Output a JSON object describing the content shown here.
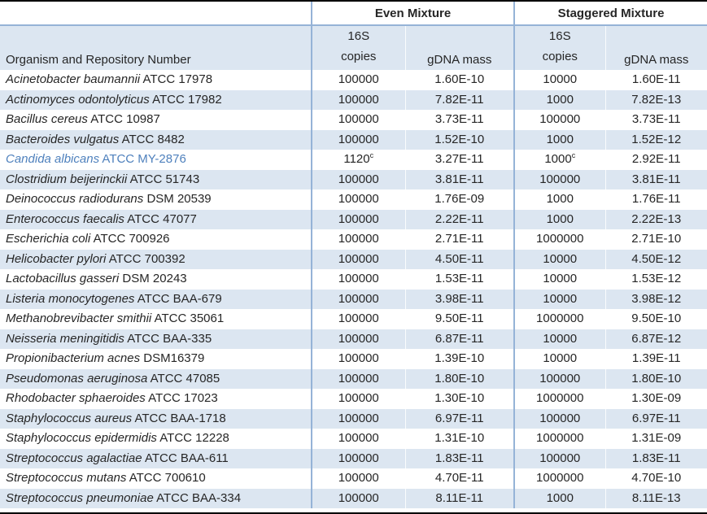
{
  "header": {
    "group_even": "Even Mixture",
    "group_staggered": "Staggered Mixture",
    "organism": "Organism and Repository Number",
    "copies_top": "16S",
    "copies_bottom": "copies",
    "gdna": "gDNA mass"
  },
  "colors": {
    "stripe": "#dce6f1",
    "border_blue": "#95b3d7",
    "border_dark": "#000000",
    "text": "#262626",
    "highlight_text": "#4f81bd"
  },
  "rows": [
    {
      "name": "Acinetobacter baumannii",
      "repo": "ATCC 17978",
      "even_copies": "100000",
      "even_gdna": "1.60E-10",
      "stag_copies": "10000",
      "stag_gdna": "1.60E-11",
      "highlight": false
    },
    {
      "name": "Actinomyces odontolyticus",
      "repo": "ATCC 17982",
      "even_copies": "100000",
      "even_gdna": "7.82E-11",
      "stag_copies": "1000",
      "stag_gdna": "7.82E-13",
      "highlight": false
    },
    {
      "name": "Bacillus cereus",
      "repo": "ATCC 10987",
      "even_copies": "100000",
      "even_gdna": "3.73E-11",
      "stag_copies": "100000",
      "stag_gdna": "3.73E-11",
      "highlight": false
    },
    {
      "name": "Bacteroides vulgatus",
      "repo": "ATCC 8482",
      "even_copies": "100000",
      "even_gdna": "1.52E-10",
      "stag_copies": "1000",
      "stag_gdna": "1.52E-12",
      "highlight": false
    },
    {
      "name": "Candida albicans",
      "repo": "ATCC MY-2876",
      "even_copies": "1120",
      "even_copies_sup": "c",
      "even_gdna": "3.27E-11",
      "stag_copies": "1000",
      "stag_copies_sup": "c",
      "stag_gdna": "2.92E-11",
      "highlight": true
    },
    {
      "name": "Clostridium beijerinckii",
      "repo": "ATCC 51743",
      "even_copies": "100000",
      "even_gdna": "3.81E-11",
      "stag_copies": "100000",
      "stag_gdna": "3.81E-11",
      "highlight": false
    },
    {
      "name": "Deinococcus radiodurans",
      "repo": "DSM 20539",
      "even_copies": "100000",
      "even_gdna": "1.76E-09",
      "stag_copies": "1000",
      "stag_gdna": "1.76E-11",
      "highlight": false
    },
    {
      "name": "Enterococcus faecalis",
      "repo": "ATCC 47077",
      "even_copies": "100000",
      "even_gdna": "2.22E-11",
      "stag_copies": "1000",
      "stag_gdna": "2.22E-13",
      "highlight": false
    },
    {
      "name": "Escherichia coli",
      "repo": "ATCC 700926",
      "even_copies": "100000",
      "even_gdna": "2.71E-11",
      "stag_copies": "1000000",
      "stag_gdna": "2.71E-10",
      "highlight": false
    },
    {
      "name": "Helicobacter pylori",
      "repo": "ATCC 700392",
      "even_copies": "100000",
      "even_gdna": "4.50E-11",
      "stag_copies": "10000",
      "stag_gdna": "4.50E-12",
      "highlight": false
    },
    {
      "name": "Lactobacillus gasseri",
      "repo": "DSM 20243",
      "even_copies": "100000",
      "even_gdna": "1.53E-11",
      "stag_copies": "10000",
      "stag_gdna": "1.53E-12",
      "highlight": false
    },
    {
      "name": "Listeria monocytogenes",
      "repo": "ATCC BAA-679",
      "even_copies": "100000",
      "even_gdna": "3.98E-11",
      "stag_copies": "10000",
      "stag_gdna": "3.98E-12",
      "highlight": false
    },
    {
      "name": "Methanobrevibacter smithii",
      "repo": "ATCC 35061",
      "even_copies": "100000",
      "even_gdna": "9.50E-11",
      "stag_copies": "1000000",
      "stag_gdna": "9.50E-10",
      "highlight": false
    },
    {
      "name": "Neisseria meningitidis",
      "repo": "ATCC BAA-335",
      "even_copies": "100000",
      "even_gdna": "6.87E-11",
      "stag_copies": "10000",
      "stag_gdna": "6.87E-12",
      "highlight": false
    },
    {
      "name": "Propionibacterium acnes",
      "repo": "DSM16379",
      "even_copies": "100000",
      "even_gdna": "1.39E-10",
      "stag_copies": "10000",
      "stag_gdna": "1.39E-11",
      "highlight": false
    },
    {
      "name": "Pseudomonas aeruginosa",
      "repo": "ATCC 47085",
      "even_copies": "100000",
      "even_gdna": "1.80E-10",
      "stag_copies": "100000",
      "stag_gdna": "1.80E-10",
      "highlight": false
    },
    {
      "name": "Rhodobacter sphaeroides",
      "repo": "ATCC 17023",
      "even_copies": "100000",
      "even_gdna": "1.30E-10",
      "stag_copies": "1000000",
      "stag_gdna": "1.30E-09",
      "highlight": false
    },
    {
      "name": "Staphylococcus aureus",
      "repo": "ATCC BAA-1718",
      "even_copies": "100000",
      "even_gdna": "6.97E-11",
      "stag_copies": "100000",
      "stag_gdna": "6.97E-11",
      "highlight": false
    },
    {
      "name": "Staphylococcus epidermidis",
      "repo": "ATCC 12228",
      "even_copies": "100000",
      "even_gdna": "1.31E-10",
      "stag_copies": "1000000",
      "stag_gdna": "1.31E-09",
      "highlight": false
    },
    {
      "name": "Streptococcus agalactiae",
      "repo": "ATCC BAA-611",
      "even_copies": "100000",
      "even_gdna": "1.83E-11",
      "stag_copies": "100000",
      "stag_gdna": "1.83E-11",
      "highlight": false
    },
    {
      "name": "Streptococcus mutans",
      "repo": "ATCC 700610",
      "even_copies": "100000",
      "even_gdna": "4.70E-11",
      "stag_copies": "1000000",
      "stag_gdna": "4.70E-10",
      "highlight": false
    },
    {
      "name": "Streptococcus pneumoniae",
      "repo": "ATCC BAA-334",
      "even_copies": "100000",
      "even_gdna": "8.11E-11",
      "stag_copies": "1000",
      "stag_gdna": "8.11E-13",
      "highlight": false
    }
  ]
}
